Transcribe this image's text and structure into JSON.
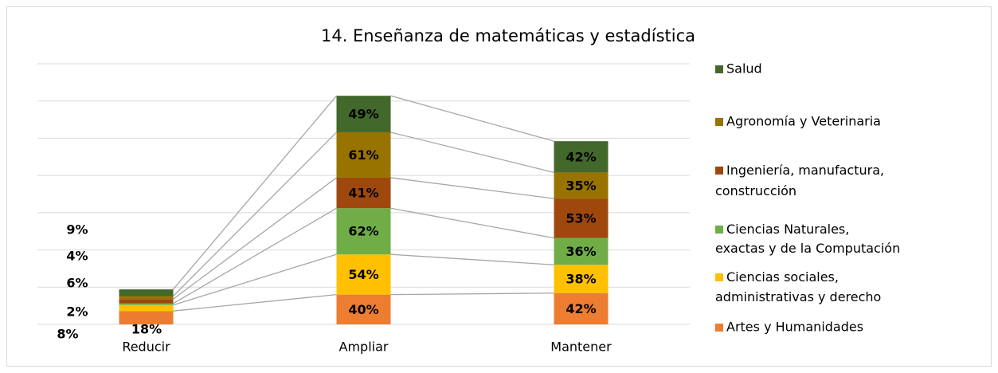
{
  "chart_data": {
    "type": "stacked_bar",
    "title": "14. Enseñanza de matemáticas y estadística",
    "categories": [
      "Reducir",
      "Ampliar",
      "Mantener"
    ],
    "ylim": [
      0,
      350
    ],
    "yticks": [
      0,
      50,
      100,
      150,
      200,
      250,
      300,
      350
    ],
    "grid": true,
    "series": [
      {
        "name": "Artes y Humanidades",
        "color": "#ED7D31",
        "values": [
          18,
          40,
          42
        ],
        "value_labels": [
          "18%",
          "40%",
          "42%"
        ]
      },
      {
        "name": "Ciencias sociales, administrativas y derecho",
        "color": "#FFC000",
        "values": [
          8,
          54,
          38
        ],
        "value_labels": [
          "8%",
          "54%",
          "38%"
        ]
      },
      {
        "name": "Ciencias Naturales, exactas y de la Computación",
        "color": "#70AD47",
        "values": [
          2,
          62,
          36
        ],
        "value_labels": [
          "2%",
          "62%",
          "36%"
        ]
      },
      {
        "name": "Ingeniería, manufactura, construcción",
        "color": "#9E480E",
        "values": [
          6,
          41,
          53
        ],
        "value_labels": [
          "6%",
          "41%",
          "53%"
        ]
      },
      {
        "name": "Agronomía y Veterinaria",
        "color": "#997300",
        "values": [
          4,
          61,
          35
        ],
        "value_labels": [
          "4%",
          "61%",
          "35%"
        ]
      },
      {
        "name": "Salud",
        "color": "#43682B",
        "values": [
          9,
          49,
          42
        ],
        "value_labels": [
          "9%",
          "49%",
          "42%"
        ]
      }
    ]
  }
}
